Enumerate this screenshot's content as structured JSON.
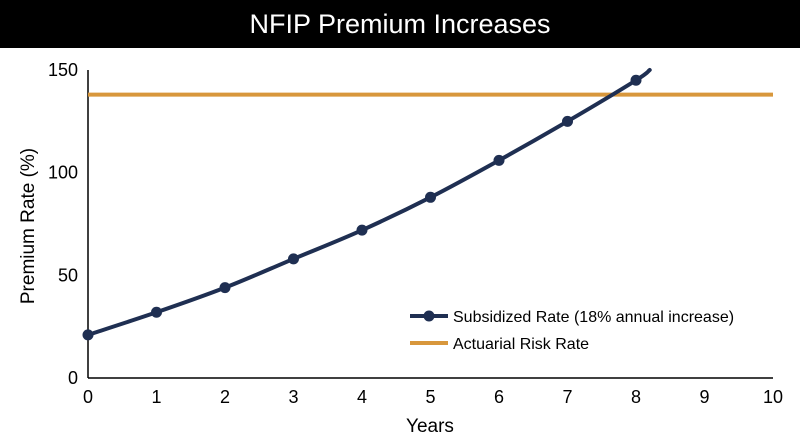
{
  "chart_data": {
    "type": "line",
    "title": "NFIP Premium Increases",
    "xlabel": "Years",
    "ylabel": "Premium Rate (%)",
    "xlim": [
      0,
      10
    ],
    "ylim": [
      0,
      150
    ],
    "x_ticks": [
      0,
      1,
      2,
      3,
      4,
      5,
      6,
      7,
      8,
      9,
      10
    ],
    "y_ticks": [
      0,
      50,
      100,
      150
    ],
    "grid": false,
    "legend_position": "bottom-right",
    "series": [
      {
        "name": "Subsidized Rate (18% annual increase)",
        "color": "#1f2f52",
        "marker": "circle",
        "x": [
          0,
          1,
          2,
          3,
          4,
          5,
          6,
          7,
          8
        ],
        "y": [
          21,
          32,
          44,
          58,
          72,
          88,
          106,
          125,
          145
        ],
        "line_extends_to": {
          "x": 8.2,
          "y": 150
        }
      },
      {
        "name": "Actuarial Risk Rate",
        "color": "#d8973c",
        "marker": "none",
        "x": [
          0,
          10
        ],
        "y": [
          138,
          138
        ]
      }
    ]
  }
}
